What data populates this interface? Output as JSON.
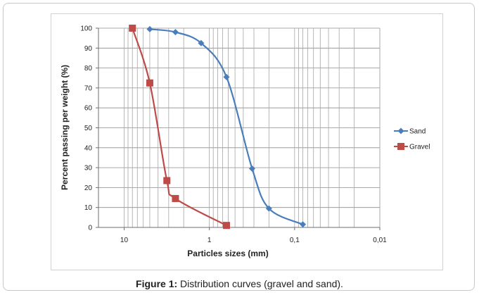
{
  "caption": {
    "label": "Figure 1:",
    "text": " Distribution curves (gravel and sand)."
  },
  "chart_data": {
    "type": "scatter",
    "xlabel": "Particles sizes (mm)",
    "ylabel": "Percent passing per weight (%)",
    "x_scale": "log",
    "x_reversed": true,
    "xlim": [
      20,
      0.01
    ],
    "ylim": [
      0,
      100
    ],
    "x_ticks": [
      10,
      1,
      0.1,
      0.01
    ],
    "x_tick_labels": [
      "10",
      "1",
      "0,1",
      "0,01"
    ],
    "y_ticks": [
      0,
      10,
      20,
      30,
      40,
      50,
      60,
      70,
      80,
      90,
      100
    ],
    "y_tick_labels": [
      "0",
      "10",
      "20",
      "30",
      "40",
      "50",
      "60",
      "70",
      "80",
      "90",
      "100"
    ],
    "grid": {
      "horizontal": true,
      "vertical_log_minor": true
    },
    "legend_position": "right",
    "series": [
      {
        "name": "Sand",
        "color": "#4a7ebb",
        "marker": "diamond",
        "points": [
          [
            5,
            99.5
          ],
          [
            2.5,
            98
          ],
          [
            1.25,
            92.5
          ],
          [
            0.63,
            75.5
          ],
          [
            0.315,
            29.5
          ],
          [
            0.2,
            9.5
          ],
          [
            0.08,
            1.5
          ]
        ]
      },
      {
        "name": "Gravel",
        "color": "#be4b48",
        "marker": "square",
        "points": [
          [
            8,
            100
          ],
          [
            5,
            72.5
          ],
          [
            3.15,
            23.5
          ],
          [
            2.5,
            14.5
          ],
          [
            0.63,
            1
          ]
        ]
      }
    ]
  }
}
